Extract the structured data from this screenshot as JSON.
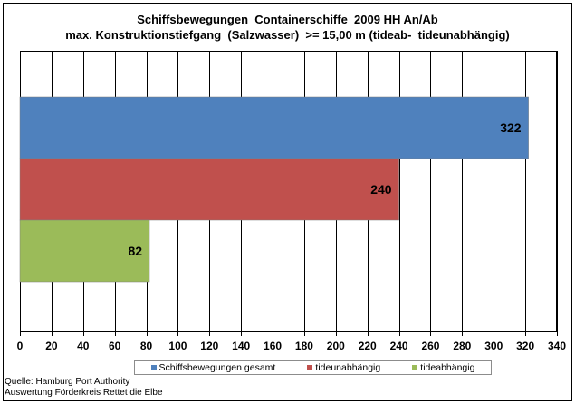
{
  "chart_data": {
    "type": "bar",
    "orientation": "horizontal",
    "title": "Schiffsbewegungen  Containerschiffe  2009 HH An/Ab",
    "subtitle": "max. Konstruktionstiefgang  (Salzwasser)  >= 15,00 m (tideab-  tideunabhängig)",
    "series": [
      {
        "name": "Schiffsbewegungen gesamt",
        "values": [
          322
        ],
        "color": "#4f81bd"
      },
      {
        "name": "tideunabhängig",
        "values": [
          240
        ],
        "color": "#c0504d"
      },
      {
        "name": "tideabhängig",
        "values": [
          82
        ],
        "color": "#9bbb59"
      }
    ],
    "xlim": [
      0,
      340
    ],
    "xticks": [
      0,
      20,
      40,
      60,
      80,
      100,
      120,
      140,
      160,
      180,
      200,
      220,
      240,
      260,
      280,
      300,
      320,
      340
    ],
    "grid": "vertical",
    "legend_position": "bottom"
  },
  "source_lines": [
    "Quelle: Hamburg Port Authority",
    "Auswertung Förderkreis Rettet die Elbe"
  ]
}
